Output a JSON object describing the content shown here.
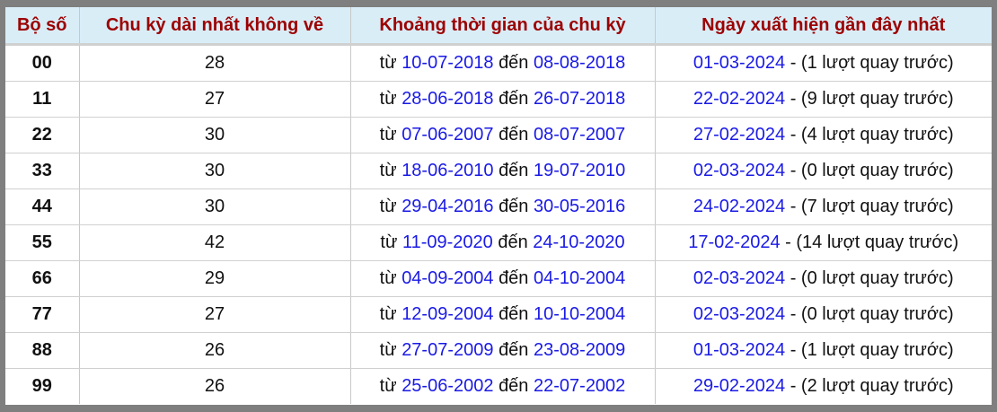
{
  "headers": [
    "Bộ số",
    "Chu kỳ dài nhất không về",
    "Khoảng thời gian của chu kỳ",
    "Ngày xuất hiện gần đây nhất"
  ],
  "labels": {
    "from": "từ",
    "to": "đến",
    "sep": " - ",
    "suffix_open": "(",
    "suffix_close": " lượt quay trước)"
  },
  "rows": [
    {
      "num": "00",
      "cycle": "28",
      "from": "10-07-2018",
      "to": "08-08-2018",
      "last": "01-03-2024",
      "ago": "1"
    },
    {
      "num": "11",
      "cycle": "27",
      "from": "28-06-2018",
      "to": "26-07-2018",
      "last": "22-02-2024",
      "ago": "9"
    },
    {
      "num": "22",
      "cycle": "30",
      "from": "07-06-2007",
      "to": "08-07-2007",
      "last": "27-02-2024",
      "ago": "4"
    },
    {
      "num": "33",
      "cycle": "30",
      "from": "18-06-2010",
      "to": "19-07-2010",
      "last": "02-03-2024",
      "ago": "0"
    },
    {
      "num": "44",
      "cycle": "30",
      "from": "29-04-2016",
      "to": "30-05-2016",
      "last": "24-02-2024",
      "ago": "7"
    },
    {
      "num": "55",
      "cycle": "42",
      "from": "11-09-2020",
      "to": "24-10-2020",
      "last": "17-02-2024",
      "ago": "14"
    },
    {
      "num": "66",
      "cycle": "29",
      "from": "04-09-2004",
      "to": "04-10-2004",
      "last": "02-03-2024",
      "ago": "0"
    },
    {
      "num": "77",
      "cycle": "27",
      "from": "12-09-2004",
      "to": "10-10-2004",
      "last": "02-03-2024",
      "ago": "0"
    },
    {
      "num": "88",
      "cycle": "26",
      "from": "27-07-2009",
      "to": "23-08-2009",
      "last": "01-03-2024",
      "ago": "1"
    },
    {
      "num": "99",
      "cycle": "26",
      "from": "25-06-2002",
      "to": "22-07-2002",
      "last": "29-02-2024",
      "ago": "2"
    }
  ],
  "colors": {
    "header_bg": "#d9edf7",
    "header_text": "#9c0000",
    "date_link": "#1a1ae6",
    "frame": "#7f7f7f"
  }
}
